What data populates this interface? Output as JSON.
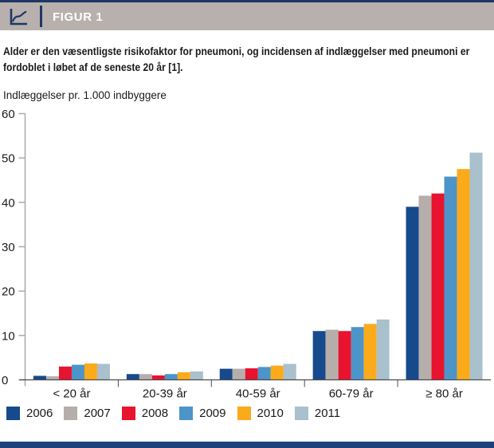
{
  "header": {
    "figure_label": "FIGUR 1",
    "icon": "line-chart-icon"
  },
  "description": "Alder er den væsentligste risikofaktor for pneumoni, og incidensen af indlæggelser med pneumoni er fordoblet i løbet af de seneste 20 år [1].",
  "chart_data": {
    "type": "bar",
    "title": "",
    "ylabel": "Indlæggelser pr. 1.000 indbyggere",
    "xlabel": "",
    "ylim": [
      0,
      60
    ],
    "ytick_step": 10,
    "grid": false,
    "legend_position": "bottom",
    "categories": [
      "< 20 år",
      "20-39 år",
      "40-59 år",
      "60-79 år",
      "≥ 80 år"
    ],
    "series": [
      {
        "name": "2006",
        "color": "#164a8c",
        "values": [
          0.9,
          1.3,
          2.5,
          11.0,
          39.0
        ]
      },
      {
        "name": "2007",
        "color": "#b6aeab",
        "values": [
          0.8,
          1.3,
          2.5,
          11.3,
          41.5
        ]
      },
      {
        "name": "2008",
        "color": "#e8132f",
        "values": [
          3.0,
          1.0,
          2.6,
          11.0,
          42.0
        ]
      },
      {
        "name": "2009",
        "color": "#4d94c9",
        "values": [
          3.4,
          1.3,
          2.9,
          11.9,
          45.8
        ]
      },
      {
        "name": "2010",
        "color": "#fbaa19",
        "values": [
          3.7,
          1.7,
          3.2,
          12.6,
          47.5
        ]
      },
      {
        "name": "2011",
        "color": "#a9c0cd",
        "values": [
          3.6,
          1.9,
          3.6,
          13.6,
          51.2
        ]
      }
    ]
  },
  "colors": {
    "navy": "#1e3765",
    "band_navy": "#20407c",
    "header_gray": "#b7b0ad",
    "axis_gray": "#a9a9a9",
    "baseline": "#4c4c4c",
    "ink": "#1a1a1a"
  }
}
